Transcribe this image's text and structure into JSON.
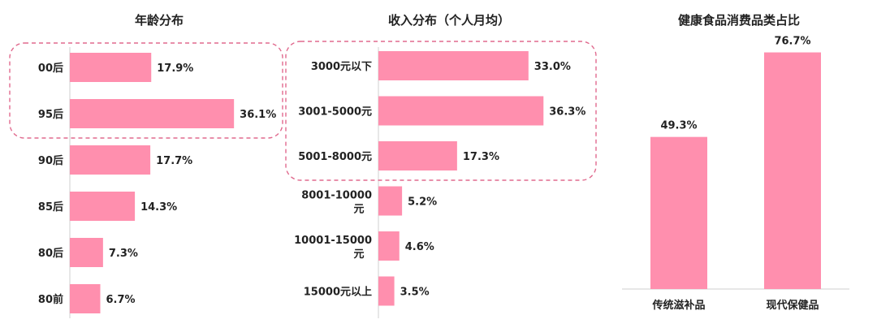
{
  "chart_data": [
    {
      "type": "bar",
      "orientation": "horizontal",
      "title": "年龄分布",
      "categories": [
        "00后",
        "95后",
        "90后",
        "85后",
        "80后",
        "80前"
      ],
      "values": [
        17.9,
        36.1,
        17.7,
        14.3,
        7.3,
        6.7
      ],
      "value_labels": [
        "17.9%",
        "36.1%",
        "17.7%",
        "14.3%",
        "7.3%",
        "6.7%"
      ],
      "highlighted_categories": [
        "00后",
        "95后"
      ],
      "bar_color": "#ff8fae",
      "highlight_border_color": "#e06a8e"
    },
    {
      "type": "bar",
      "orientation": "horizontal",
      "title": "收入分布（个人月均）",
      "categories": [
        "3000元以下",
        "3001-5000元",
        "5001-8000元",
        "8001-10000元",
        "10001-15000元",
        "15000元以上"
      ],
      "values": [
        33.0,
        36.3,
        17.3,
        5.2,
        4.6,
        3.5
      ],
      "value_labels": [
        "33.0%",
        "36.3%",
        "17.3%",
        "5.2%",
        "4.6%",
        "3.5%"
      ],
      "highlighted_categories": [
        "3000元以下",
        "3001-5000元",
        "5001-8000元"
      ],
      "bar_color": "#ff8fae",
      "highlight_border_color": "#e06a8e"
    },
    {
      "type": "bar",
      "orientation": "vertical",
      "title": "健康食品消费品类占比",
      "categories": [
        "传统滋补品",
        "现代保健品"
      ],
      "values": [
        49.3,
        76.7
      ],
      "value_labels": [
        "49.3%",
        "76.7%"
      ],
      "bar_color": "#ff8fae"
    }
  ]
}
